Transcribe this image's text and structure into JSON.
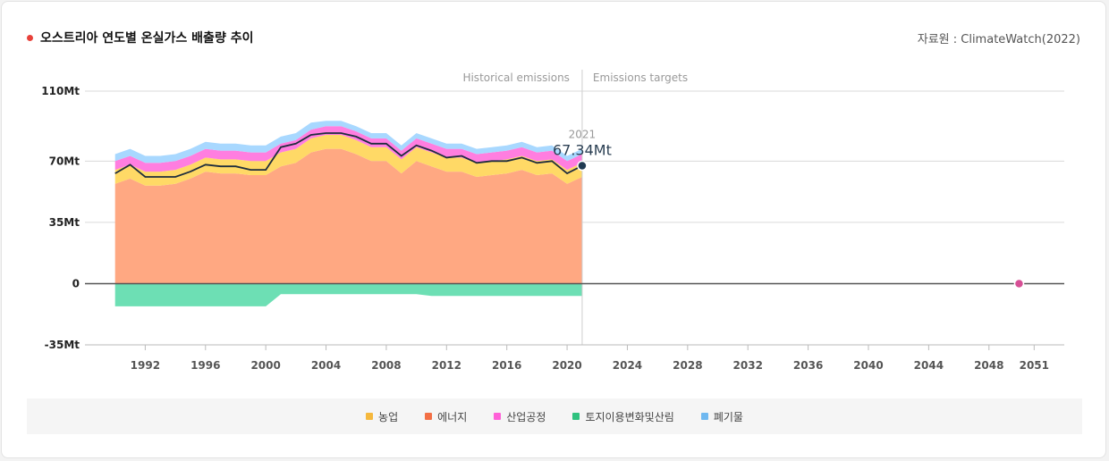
{
  "header": {
    "title": "오스트리아 연도별 온실가스 배출량 추이",
    "source": "자료원 : ClimateWatch(2022)"
  },
  "chart_data": {
    "type": "area",
    "title": "오스트리아 연도별 온실가스 배출량 추이",
    "xlabel": "",
    "ylabel": "",
    "x": [
      1990,
      1991,
      1992,
      1993,
      1994,
      1995,
      1996,
      1997,
      1998,
      1999,
      2000,
      2001,
      2002,
      2003,
      2004,
      2005,
      2006,
      2007,
      2008,
      2009,
      2010,
      2011,
      2012,
      2013,
      2014,
      2015,
      2016,
      2017,
      2018,
      2019,
      2020,
      2021
    ],
    "xlim": [
      1988,
      2053
    ],
    "ylim": [
      -35,
      110
    ],
    "x_ticks": [
      1992,
      1996,
      2000,
      2004,
      2008,
      2012,
      2016,
      2020,
      2024,
      2028,
      2032,
      2036,
      2040,
      2044,
      2048,
      2051
    ],
    "y_ticks": [
      {
        "value": 110,
        "label": "110Mt"
      },
      {
        "value": 70,
        "label": "70Mt"
      },
      {
        "value": 35,
        "label": "35Mt"
      },
      {
        "value": 0,
        "label": "0"
      },
      {
        "value": -35,
        "label": "-35Mt"
      }
    ],
    "series": [
      {
        "name": "에너지",
        "color": "#ffa882",
        "values": [
          57,
          60,
          56,
          56,
          57,
          60,
          64,
          63,
          63,
          62,
          62,
          67,
          69,
          75,
          77,
          77,
          74,
          70,
          70,
          63,
          70,
          67,
          64,
          64,
          61,
          62,
          63,
          65,
          62,
          63,
          57,
          61
        ]
      },
      {
        "name": "농업",
        "color": "#ffd966",
        "values": [
          8,
          8,
          8,
          8,
          8,
          8,
          8,
          8,
          8,
          8,
          8,
          8,
          8,
          8,
          8,
          8,
          8,
          8,
          8,
          8,
          8,
          8,
          8,
          8,
          8,
          8,
          8,
          8,
          8,
          8,
          8,
          8
        ]
      },
      {
        "name": "산업공정",
        "color": "#ff7ee0",
        "values": [
          5,
          5,
          5,
          5,
          5,
          5,
          5,
          5,
          5,
          5,
          5,
          5,
          5,
          5,
          5,
          5,
          5,
          5,
          5,
          5,
          5,
          5,
          5,
          5,
          5,
          5,
          5,
          5,
          5,
          5,
          5,
          5
        ]
      },
      {
        "name": "폐기물",
        "color": "#a8d8ff",
        "values": [
          4,
          4,
          4,
          4,
          4,
          4,
          4,
          4,
          4,
          4,
          4,
          4,
          4,
          4,
          3,
          3,
          3,
          3,
          3,
          3,
          3,
          3,
          3,
          3,
          3,
          3,
          3,
          3,
          3,
          3,
          3,
          3
        ]
      },
      {
        "name": "토지이용변화및산림",
        "color": "#6ddfb4",
        "values": [
          -13,
          -13,
          -13,
          -13,
          -13,
          -13,
          -13,
          -13,
          -13,
          -13,
          -13,
          -6,
          -6,
          -6,
          -6,
          -6,
          -6,
          -6,
          -6,
          -6,
          -6,
          -7,
          -7,
          -7,
          -7,
          -7,
          -7,
          -7,
          -7,
          -7,
          -7,
          -7
        ]
      }
    ],
    "net_line": {
      "color": "#1f2d3d",
      "values": [
        63,
        68,
        61,
        61,
        61,
        64,
        68,
        67,
        67,
        65,
        65,
        78,
        80,
        85,
        86,
        86,
        84,
        80,
        80,
        73,
        79,
        76,
        72,
        73,
        69,
        70,
        70,
        72,
        69,
        70,
        63,
        67.34
      ]
    },
    "marker": {
      "year": "2021",
      "label": "67.34Mt",
      "value": 67.34,
      "color": "#1f3a52"
    },
    "target": {
      "year": 2050,
      "value": 0,
      "color": "#d64f95"
    },
    "divider_year": 2021,
    "annotations": {
      "historical": "Historical emissions",
      "targets": "Emissions targets"
    }
  },
  "legend": [
    {
      "label": "농업",
      "color": "#f5b83d"
    },
    {
      "label": "에너지",
      "color": "#f36f45"
    },
    {
      "label": "산업공정",
      "color": "#ff61d8"
    },
    {
      "label": "토지이용변화및산림",
      "color": "#2fc27f"
    },
    {
      "label": "폐기물",
      "color": "#6fb8f0"
    }
  ]
}
